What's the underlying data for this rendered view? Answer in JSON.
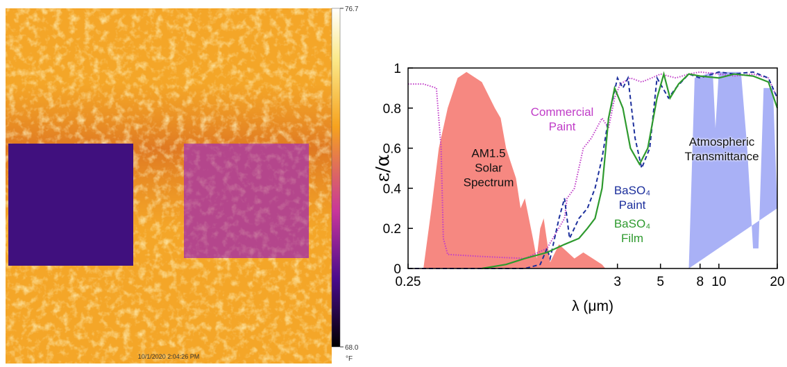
{
  "chart_data": [
    {
      "type": "thermal-image",
      "timestamp": "10/1/2020 2:04:26 PM",
      "clim": [
        68,
        76.7
      ],
      "colorbar_ticks": [
        76.7,
        {
          "value": 68,
          "label": "68.0"
        }
      ],
      "colorbar_unit": "°F"
    },
    {
      "type": "line",
      "xlabel": "λ (μm)",
      "ylabel": "ε/α",
      "xscale": "log",
      "xlim": [
        0.25,
        20
      ],
      "ylim": [
        0,
        1
      ],
      "xticks": [
        0.25,
        3,
        5,
        8,
        10,
        20
      ],
      "yticks": [
        0,
        0.2,
        0.4,
        0.6,
        0.8,
        1
      ],
      "series": [
        {
          "name": "AM1.5 Solar Spectrum",
          "color": "#f4736b",
          "style": "area",
          "x": [
            0.3,
            0.33,
            0.36,
            0.4,
            0.45,
            0.5,
            0.6,
            0.7,
            0.75,
            0.8,
            0.9,
            0.95,
            1.0,
            1.1,
            1.15,
            1.2,
            1.25,
            1.35,
            1.5,
            1.8,
            2.0,
            2.5,
            2.6
          ],
          "values": [
            0,
            0.3,
            0.6,
            0.8,
            0.95,
            0.98,
            0.93,
            0.8,
            0.75,
            0.6,
            0.45,
            0.3,
            0.35,
            0.15,
            0.05,
            0.2,
            0.25,
            0.03,
            0.12,
            0.05,
            0.08,
            0.02,
            0
          ]
        },
        {
          "name": "Atmospheric Transmittance",
          "color": "#6f7df0",
          "style": "area",
          "x": [
            7,
            7.5,
            9.3,
            9.6,
            10,
            13,
            14,
            15,
            16,
            17,
            19,
            20
          ],
          "values": [
            0,
            0.95,
            0.98,
            0.7,
            0.98,
            0.98,
            0.6,
            0.1,
            0.1,
            0.9,
            0.9,
            0.3
          ]
        },
        {
          "name": "Commercial Paint",
          "color": "#c03cc8",
          "style": "dotted",
          "x": [
            0.25,
            0.3,
            0.35,
            0.37,
            0.38,
            0.4,
            0.6,
            1.0,
            1.3,
            1.6,
            1.65,
            1.8,
            2.0,
            2.2,
            2.5,
            2.7,
            2.9,
            3.1,
            3.5,
            4.0,
            4.5,
            5,
            6,
            7,
            8,
            10,
            12,
            15,
            18,
            20
          ],
          "values": [
            0.92,
            0.92,
            0.9,
            0.6,
            0.15,
            0.07,
            0.06,
            0.05,
            0.1,
            0.25,
            0.35,
            0.4,
            0.6,
            0.65,
            0.75,
            0.7,
            0.85,
            0.92,
            0.95,
            0.93,
            0.95,
            0.97,
            0.95,
            0.97,
            0.98,
            0.97,
            0.96,
            0.97,
            0.95,
            0.85
          ]
        },
        {
          "name": "BaSO₄ Paint",
          "color": "#1c2f9c",
          "style": "dashed",
          "x": [
            0.25,
            1.0,
            1.2,
            1.3,
            1.35,
            1.5,
            1.6,
            1.7,
            1.9,
            2.1,
            2.3,
            2.5,
            2.7,
            3.0,
            3.2,
            3.4,
            3.7,
            4.0,
            4.4,
            4.8,
            5.5,
            6,
            7,
            8,
            10,
            12,
            15,
            18,
            20
          ],
          "values": [
            0,
            0,
            0.02,
            0.1,
            0.05,
            0.25,
            0.35,
            0.15,
            0.25,
            0.3,
            0.4,
            0.55,
            0.75,
            0.95,
            0.9,
            0.95,
            0.65,
            0.5,
            0.6,
            0.95,
            0.85,
            0.9,
            0.97,
            0.95,
            0.98,
            0.97,
            0.98,
            0.95,
            0.85
          ]
        },
        {
          "name": "BaSO₄ Film",
          "color": "#2e9a2e",
          "style": "solid",
          "x": [
            0.6,
            0.8,
            1.0,
            1.3,
            1.6,
            1.9,
            2.1,
            2.3,
            2.5,
            2.7,
            2.9,
            3.2,
            3.5,
            3.9,
            4.3,
            4.8,
            5.2,
            5.6,
            6.2,
            7,
            8,
            10,
            12,
            15,
            18,
            20
          ],
          "values": [
            0,
            0.02,
            0.05,
            0.08,
            0.12,
            0.15,
            0.2,
            0.25,
            0.4,
            0.75,
            0.9,
            0.8,
            0.6,
            0.52,
            0.6,
            0.85,
            0.97,
            0.85,
            0.92,
            0.97,
            0.96,
            0.95,
            0.97,
            0.96,
            0.93,
            0.8
          ]
        }
      ]
    }
  ]
}
